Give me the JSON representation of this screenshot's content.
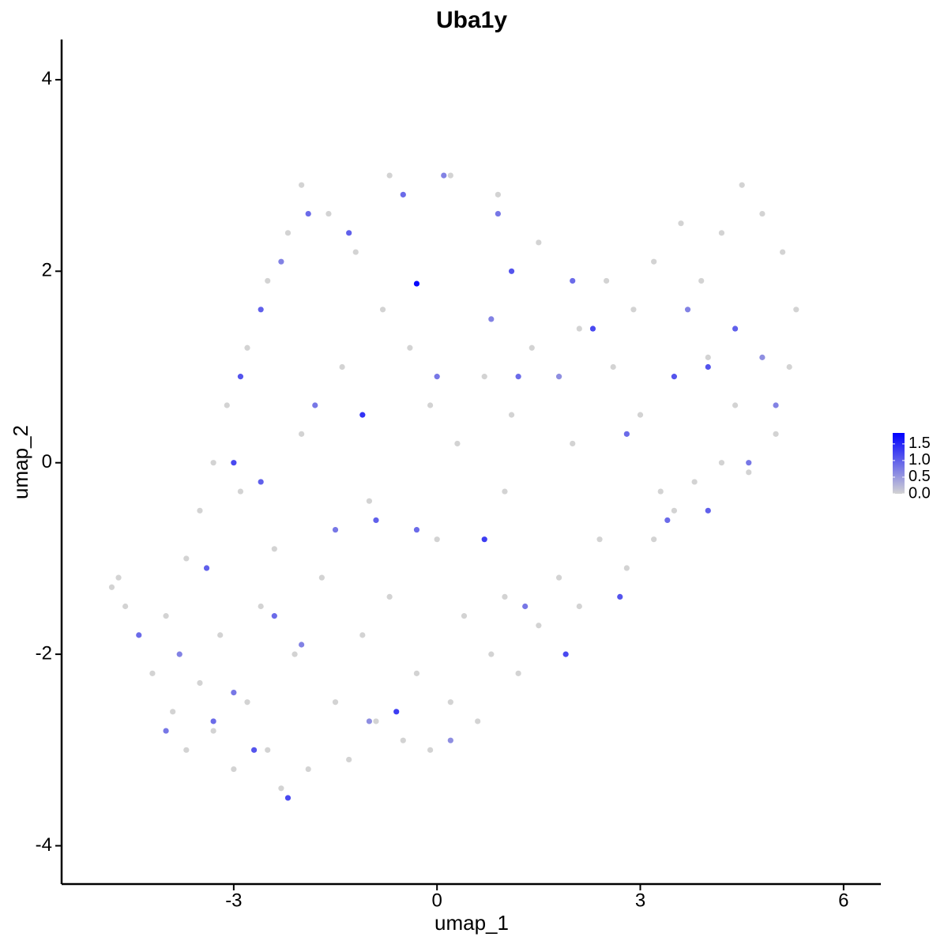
{
  "chart_data": {
    "type": "scatter",
    "title": "Uba1y",
    "xlabel": "umap_1",
    "ylabel": "umap_2",
    "xlim": [
      -5.54,
      6.55
    ],
    "ylim": [
      -4.4,
      4.42
    ],
    "xticks": [
      -3,
      0,
      3,
      6
    ],
    "yticks": [
      -4,
      -2,
      0,
      2,
      4
    ],
    "color_low": "#d3d3d3",
    "color_high": "#0000ff",
    "colorbar": {
      "lim": [
        0,
        1.83
      ],
      "ticks": [
        {
          "value": 0,
          "label": "0.0"
        },
        {
          "value": 0.5,
          "label": "0.5"
        },
        {
          "value": 1,
          "label": "1.0"
        },
        {
          "value": 1.5,
          "label": "1.5"
        }
      ]
    },
    "x": [
      -4.8,
      -4.7,
      -4.6,
      -4.2,
      -4.0,
      -3.9,
      -3.7,
      -3.5,
      -3.3,
      -3.2,
      -3.0,
      -2.8,
      -2.6,
      -2.5,
      -2.3,
      -2.1,
      -1.9,
      -1.7,
      -1.5,
      -1.3,
      -1.1,
      -0.9,
      -0.7,
      -0.5,
      -0.3,
      -0.1,
      0.2,
      0.4,
      0.6,
      0.8,
      1.0,
      1.2,
      1.5,
      1.8,
      2.1,
      2.4,
      2.8,
      3.2,
      3.5,
      3.8,
      4.2,
      4.6,
      5.0,
      5.2,
      5.3,
      5.1,
      4.8,
      4.5,
      4.2,
      3.9,
      3.6,
      3.2,
      2.9,
      2.5,
      2.1,
      1.8,
      1.4,
      1.1,
      0.7,
      0.3,
      -0.1,
      -0.4,
      -0.8,
      -1.2,
      -1.6,
      -2.0,
      -2.2,
      -2.5,
      -2.8,
      -3.1,
      -3.3,
      -3.5,
      -3.7,
      -2.9,
      -2.0,
      -1.0,
      0.0,
      1.0,
      2.0,
      3.0,
      4.0,
      0.2,
      -0.7,
      0.9,
      1.5,
      -1.4,
      -2.4,
      3.3,
      4.4,
      2.6,
      -4.4,
      -3.8,
      -3.4,
      -3.0,
      -2.7,
      -2.4,
      -2.2,
      -2.0,
      -1.5,
      -1.0,
      -0.6,
      -0.3,
      0.2,
      0.7,
      1.3,
      1.9,
      2.7,
      3.4,
      4.0,
      4.6,
      5.0,
      4.8,
      4.4,
      3.5,
      2.8,
      2.3,
      1.8,
      1.2,
      0.8,
      1.1,
      -0.3,
      -0.5,
      0.1,
      0.9,
      -1.3,
      -1.9,
      -2.3,
      -2.6,
      -2.9,
      -3.0,
      -2.6,
      -1.8,
      -1.1,
      -0.9,
      0.0,
      2.0,
      3.7,
      4.0,
      -4.0,
      -3.3
    ],
    "y": [
      -1.3,
      -1.2,
      -1.5,
      -2.2,
      -1.6,
      -2.6,
      -3.0,
      -2.3,
      -2.8,
      -1.8,
      -3.2,
      -2.5,
      -1.5,
      -3.0,
      -3.4,
      -2.0,
      -3.2,
      -1.2,
      -2.5,
      -3.1,
      -1.8,
      -2.7,
      -1.4,
      -2.9,
      -2.2,
      -3.0,
      -2.5,
      -1.6,
      -2.7,
      -2.0,
      -1.4,
      -2.2,
      -1.7,
      -1.2,
      -1.5,
      -0.8,
      -1.1,
      -0.8,
      -0.5,
      -0.2,
      0.0,
      -0.1,
      0.3,
      1.0,
      1.6,
      2.2,
      2.6,
      2.9,
      2.4,
      1.9,
      2.5,
      2.1,
      1.6,
      1.9,
      1.4,
      0.9,
      1.2,
      0.5,
      0.9,
      0.2,
      0.6,
      1.2,
      1.6,
      2.2,
      2.6,
      2.9,
      2.4,
      1.9,
      1.2,
      0.6,
      0.0,
      -0.5,
      -1.0,
      -0.3,
      0.3,
      -0.4,
      -0.8,
      -0.3,
      0.2,
      0.5,
      1.1,
      3.0,
      3.0,
      2.8,
      2.3,
      1.0,
      -0.9,
      -0.3,
      0.6,
      1.0,
      -1.8,
      -2.0,
      -1.1,
      -2.4,
      -3.0,
      -1.6,
      -3.5,
      -1.9,
      -0.7,
      -2.7,
      -2.6,
      -0.7,
      -2.9,
      -0.8,
      -1.5,
      -2.0,
      -1.4,
      -0.6,
      -0.5,
      0.0,
      0.6,
      1.1,
      1.4,
      0.9,
      0.3,
      1.4,
      0.9,
      0.9,
      1.5,
      2.0,
      1.87,
      2.8,
      3.0,
      2.6,
      2.4,
      2.6,
      2.1,
      1.6,
      0.9,
      0.0,
      -0.2,
      0.6,
      0.5,
      -0.6,
      0.9,
      1.9,
      1.6,
      1.0,
      -2.8,
      -2.7
    ],
    "expression": [
      0,
      0,
      0,
      0,
      0,
      0,
      0,
      0,
      0,
      0,
      0,
      0,
      0,
      0,
      0,
      0,
      0,
      0,
      0,
      0,
      0,
      0,
      0,
      0,
      0,
      0,
      0,
      0,
      0,
      0,
      0,
      0,
      0,
      0,
      0,
      0,
      0,
      0,
      0,
      0,
      0,
      0,
      0,
      0,
      0,
      0,
      0,
      0,
      0,
      0,
      0,
      0,
      0,
      0,
      0,
      0,
      0,
      0,
      0,
      0,
      0,
      0,
      0,
      0,
      0,
      0,
      0,
      0,
      0,
      0,
      0,
      0,
      0,
      0,
      0,
      0,
      0,
      0,
      0,
      0,
      0,
      0,
      0,
      0,
      0,
      0,
      0,
      0,
      0,
      0,
      0.9,
      0.7,
      1.0,
      0.8,
      1.1,
      0.9,
      1.2,
      0.7,
      0.8,
      0.6,
      1.3,
      0.9,
      0.6,
      1.3,
      0.8,
      1.2,
      1.1,
      0.9,
      1.0,
      0.8,
      0.7,
      0.6,
      1.0,
      1.1,
      0.9,
      1.2,
      0.6,
      0.9,
      0.7,
      1.1,
      1.75,
      0.9,
      0.7,
      0.8,
      1.0,
      0.9,
      0.7,
      1.0,
      1.1,
      1.2,
      1.0,
      0.8,
      1.4,
      1.0,
      0.8,
      0.9,
      0.7,
      1.1,
      0.8,
      0.9
    ]
  }
}
